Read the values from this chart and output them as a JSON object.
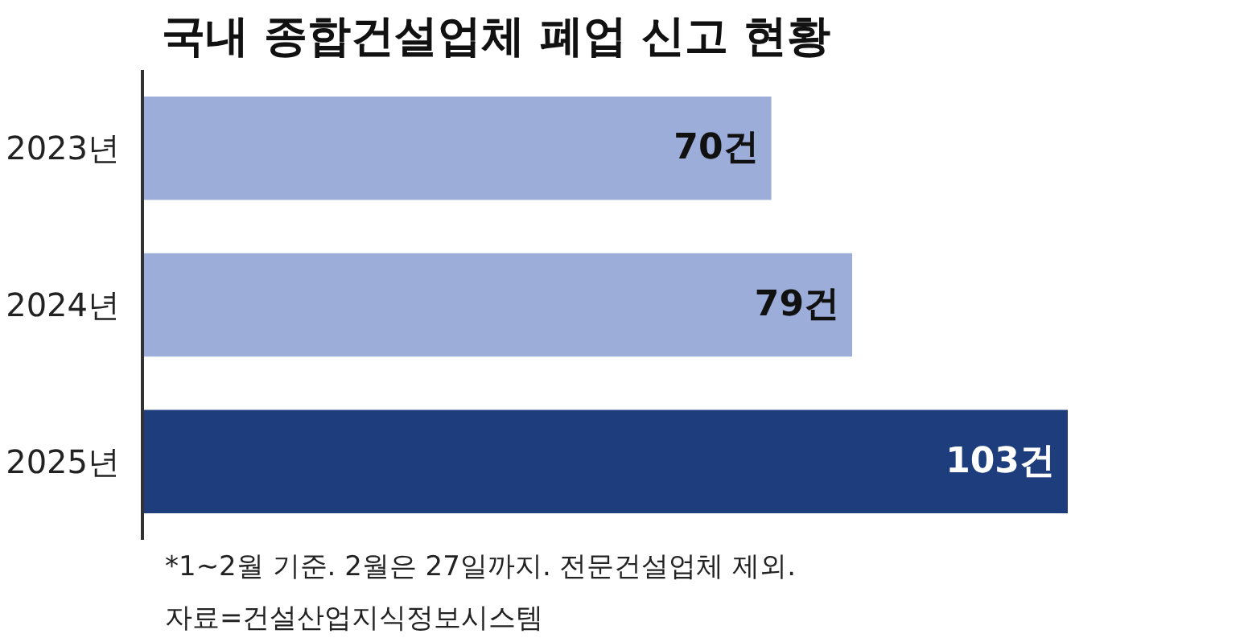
{
  "chart_data": {
    "type": "bar",
    "orientation": "horizontal",
    "title": "국내 종합건설업체 폐업 신고 현황",
    "categories": [
      "2023년",
      "2024년",
      "2025년"
    ],
    "values": [
      70,
      79,
      103
    ],
    "colors": [
      "#9badd8",
      "#9badd8",
      "#1d3d7c"
    ],
    "value_labels": [
      "70건",
      "79건",
      "103건"
    ],
    "grid": false,
    "tick_labels": "y",
    "annotations": [
      "*1~2월 기준. 2월은 27일까지. 전문건설업체 제외.",
      "자료=건설산업지식정보시스템"
    ]
  }
}
